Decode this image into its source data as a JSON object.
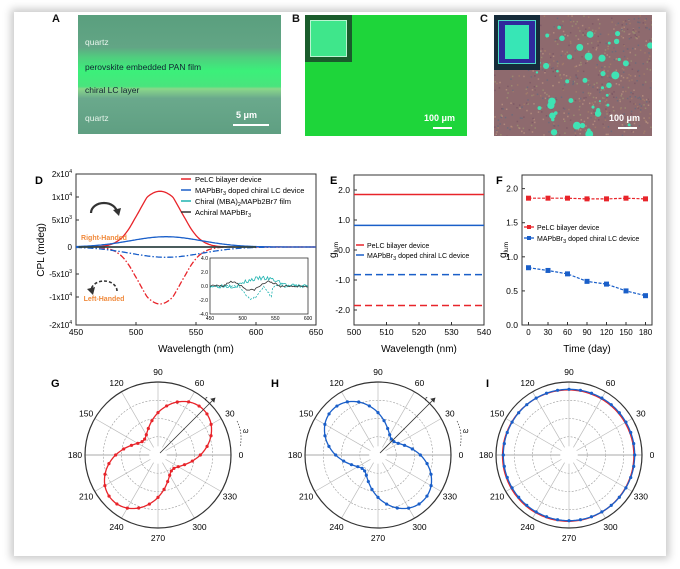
{
  "panels": {
    "A": {
      "label": "A",
      "layers": [
        "quartz",
        "perovskite embedded PAN film",
        "chiral LC layer",
        "quartz"
      ],
      "scale_bar": "5 μm"
    },
    "B": {
      "label": "B",
      "scale_bar": "100 μm"
    },
    "C": {
      "label": "C",
      "scale_bar": "100 μm"
    },
    "G": {
      "label": "G"
    },
    "H": {
      "label": "H"
    },
    "I": {
      "label": "I"
    }
  },
  "chart_data": [
    {
      "id": "D",
      "label": "D",
      "type": "line",
      "xlabel": "Wavelength (nm)",
      "ylabel": "CPL (mdeg)",
      "xlim": [
        450,
        650
      ],
      "ylim": [
        -20000,
        20000
      ],
      "xticks": [
        "450",
        "500",
        "550",
        "600",
        "650"
      ],
      "yticks": [
        {
          "v": 20000,
          "base": "2x10",
          "exp": "4"
        },
        {
          "v": 10000,
          "base": "1x10",
          "exp": "4"
        },
        {
          "v": 5000,
          "base": "5x10",
          "exp": "3"
        },
        {
          "v": 0,
          "base": "0",
          "exp": ""
        },
        {
          "v": -5000,
          "base": "-5x10",
          "exp": "3"
        },
        {
          "v": -10000,
          "base": "-1x10",
          "exp": "4"
        },
        {
          "v": -20000,
          "base": "-2x10",
          "exp": "4"
        }
      ],
      "annotations": {
        "right": "Right-Handed",
        "left": "Left-Handed"
      },
      "series": [
        {
          "name": "PeLC bilayer device",
          "color": "#e8242a",
          "peak_nm": 520,
          "amplitude": 12500,
          "width_nm": 16,
          "style": "solid",
          "mirror": true
        },
        {
          "name": "MAPbBr3 doped chiral LC device",
          "color": "#1a5fc9",
          "peak_nm": 525,
          "amplitude": 1900,
          "width_nm": 30,
          "style": "solid",
          "mirror": true
        },
        {
          "name": "Chiral (MBA)2MAPb2Br7 film",
          "color": "#1fb3b0",
          "peak_nm": 520,
          "amplitude": 0,
          "width_nm": 20,
          "style": "solid",
          "mirror": false
        },
        {
          "name": "Achiral MAPbBr3",
          "color": "#333333",
          "peak_nm": 520,
          "amplitude": 0,
          "width_nm": 20,
          "style": "solid",
          "mirror": false
        }
      ],
      "legend": [
        {
          "text": "PeLC bilayer device",
          "sub": "",
          "after": ""
        },
        {
          "text": "MAPbBr",
          "sub": "3",
          "after": " doped chiral LC device"
        },
        {
          "text": "Chiral (MBA)",
          "sub": "2",
          "after": "MAPb2Br7 film"
        },
        {
          "text": "Achiral MAPbBr",
          "sub": "3",
          "after": ""
        }
      ],
      "inset": {
        "xlim": [
          450,
          600
        ],
        "ylim": [
          -4,
          4
        ],
        "xticks": [
          "450",
          "500",
          "550",
          "600"
        ],
        "yticks": [
          "4.0",
          "2.0",
          "0.0",
          "-2.0",
          "-4.0"
        ]
      }
    },
    {
      "id": "E",
      "label": "E",
      "type": "line",
      "xlabel": "Wavelength (nm)",
      "ylabel": "g_lum",
      "xlim": [
        500,
        540
      ],
      "ylim": [
        -2.5,
        2.5
      ],
      "xticks": [
        "500",
        "510",
        "520",
        "530",
        "540"
      ],
      "yticks": [
        "2.0",
        "1.0",
        "0.0",
        "-1.0",
        "-2.0"
      ],
      "series": [
        {
          "name": "PeLC bilayer device",
          "color": "#e8242a",
          "value": 1.85,
          "style": "solid"
        },
        {
          "name": "MAPbBr3 doped chiral LC device",
          "color": "#1a5fc9",
          "value": 0.82,
          "style": "solid"
        },
        {
          "name": "MAPbBr3 doped chiral LC device (left)",
          "color": "#1a5fc9",
          "value": -0.82,
          "style": "dashed"
        },
        {
          "name": "PeLC bilayer device (left)",
          "color": "#e8242a",
          "value": -1.85,
          "style": "dashed"
        }
      ],
      "legend": [
        {
          "text": "PeLC bilayer device",
          "sub": "",
          "after": ""
        },
        {
          "text": "MAPbBr",
          "sub": "3",
          "after": " doped chiral LC device"
        }
      ]
    },
    {
      "id": "F",
      "label": "F",
      "type": "line",
      "xlabel": "Time (day)",
      "ylabel": "g_lum",
      "xlim": [
        -10,
        190
      ],
      "ylim": [
        0,
        2.2
      ],
      "xticks": [
        0,
        30,
        60,
        90,
        120,
        150,
        180
      ],
      "yticks": [
        "2.0",
        "1.5",
        "1.0",
        "0.5",
        "0.0"
      ],
      "x": [
        0,
        30,
        60,
        90,
        120,
        150,
        180
      ],
      "series": [
        {
          "name": "PeLC bilayer device",
          "color": "#e8242a",
          "values": [
            1.86,
            1.86,
            1.86,
            1.85,
            1.85,
            1.86,
            1.85
          ]
        },
        {
          "name": "MAPbBr3 doped chiral LC device",
          "color": "#1a5fc9",
          "values": [
            0.84,
            0.8,
            0.75,
            0.64,
            0.6,
            0.5,
            0.43
          ]
        }
      ],
      "legend": [
        {
          "text": "PeLC bilayer device",
          "sub": "",
          "after": ""
        },
        {
          "text": "MAPbBr",
          "sub": "3",
          "after": " doped chiral LC device"
        }
      ]
    },
    {
      "id": "G",
      "type": "polar",
      "color": "#e8242a",
      "axis_angle_deg": 45,
      "angle_labels": [
        "0",
        "30",
        "60",
        "90",
        "120",
        "150",
        "180",
        "210",
        "240",
        "270",
        "300",
        "330"
      ],
      "r_min": 0.28,
      "r_max": 0.88,
      "arrow": true,
      "arrow_labels": {
        "r": "r",
        "w": "ω"
      }
    },
    {
      "id": "H",
      "type": "polar",
      "color": "#1a5fc9",
      "axis_angle_deg": 135,
      "angle_labels": [
        "0",
        "30",
        "60",
        "90",
        "120",
        "150",
        "180",
        "210",
        "240",
        "270",
        "300",
        "330"
      ],
      "r_min": 0.28,
      "r_max": 0.88,
      "arrow": true,
      "arrow_labels": {
        "r": "r",
        "w": "ω"
      }
    },
    {
      "id": "I",
      "type": "polar",
      "color": "#1a5fc9",
      "color2": "#e8242a",
      "angle_labels": [
        "0",
        "30",
        "60",
        "90",
        "120",
        "150",
        "180",
        "210",
        "240",
        "270",
        "300",
        "330"
      ],
      "r_const": 0.9,
      "arrow": false
    }
  ]
}
